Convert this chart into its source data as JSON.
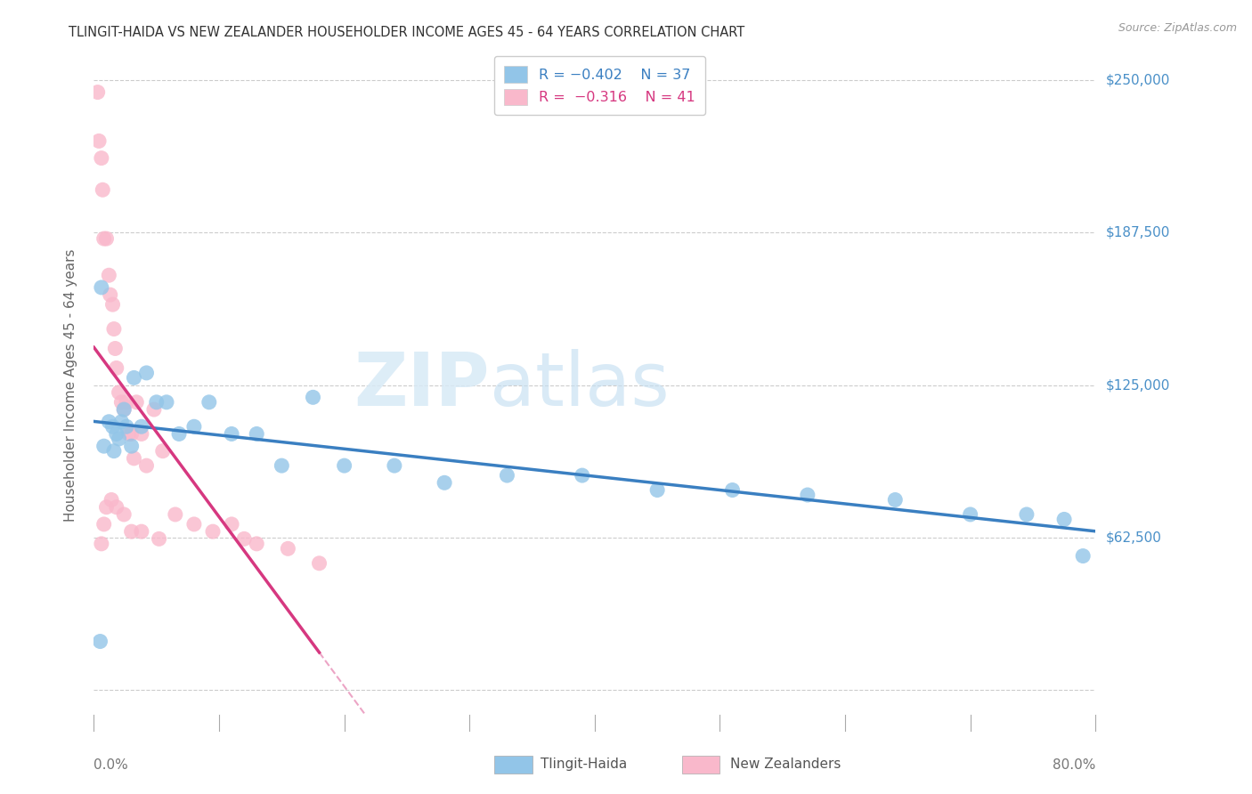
{
  "title": "TLINGIT-HAIDA VS NEW ZEALANDER HOUSEHOLDER INCOME AGES 45 - 64 YEARS CORRELATION CHART",
  "source": "Source: ZipAtlas.com",
  "ylabel": "Householder Income Ages 45 - 64 years",
  "xlim": [
    0.0,
    0.8
  ],
  "ylim": [
    -10000,
    260000
  ],
  "yticks": [
    0,
    62500,
    125000,
    187500,
    250000
  ],
  "ytick_labels": [
    "",
    "$62,500",
    "$125,000",
    "$187,500",
    "$250,000"
  ],
  "blue_color": "#92c5e8",
  "pink_color": "#f9b8cb",
  "blue_line_color": "#3a7fc1",
  "pink_line_color": "#d63880",
  "grid_color": "#cccccc",
  "title_color": "#333333",
  "axis_label_color": "#666666",
  "right_label_color": "#4a90c8",
  "blue_x": [
    0.005,
    0.008,
    0.012,
    0.015,
    0.016,
    0.018,
    0.02,
    0.022,
    0.024,
    0.026,
    0.03,
    0.032,
    0.038,
    0.042,
    0.05,
    0.058,
    0.068,
    0.08,
    0.092,
    0.11,
    0.13,
    0.15,
    0.175,
    0.2,
    0.24,
    0.28,
    0.33,
    0.39,
    0.45,
    0.51,
    0.57,
    0.64,
    0.7,
    0.745,
    0.775,
    0.79,
    0.006
  ],
  "blue_y": [
    20000,
    100000,
    110000,
    108000,
    98000,
    105000,
    103000,
    110000,
    115000,
    108000,
    100000,
    128000,
    108000,
    130000,
    118000,
    118000,
    105000,
    108000,
    118000,
    105000,
    105000,
    92000,
    120000,
    92000,
    92000,
    85000,
    88000,
    88000,
    82000,
    82000,
    80000,
    78000,
    72000,
    72000,
    70000,
    55000,
    165000
  ],
  "pink_x": [
    0.003,
    0.004,
    0.006,
    0.007,
    0.008,
    0.01,
    0.012,
    0.013,
    0.015,
    0.016,
    0.017,
    0.018,
    0.02,
    0.022,
    0.024,
    0.026,
    0.028,
    0.03,
    0.032,
    0.034,
    0.038,
    0.042,
    0.048,
    0.055,
    0.065,
    0.08,
    0.095,
    0.11,
    0.13,
    0.155,
    0.18,
    0.006,
    0.008,
    0.01,
    0.014,
    0.018,
    0.024,
    0.03,
    0.038,
    0.052,
    0.12
  ],
  "pink_y": [
    245000,
    225000,
    218000,
    205000,
    185000,
    185000,
    170000,
    162000,
    158000,
    148000,
    140000,
    132000,
    122000,
    118000,
    115000,
    118000,
    105000,
    105000,
    95000,
    118000,
    105000,
    92000,
    115000,
    98000,
    72000,
    68000,
    65000,
    68000,
    60000,
    58000,
    52000,
    60000,
    68000,
    75000,
    78000,
    75000,
    72000,
    65000,
    65000,
    62000,
    62000
  ]
}
